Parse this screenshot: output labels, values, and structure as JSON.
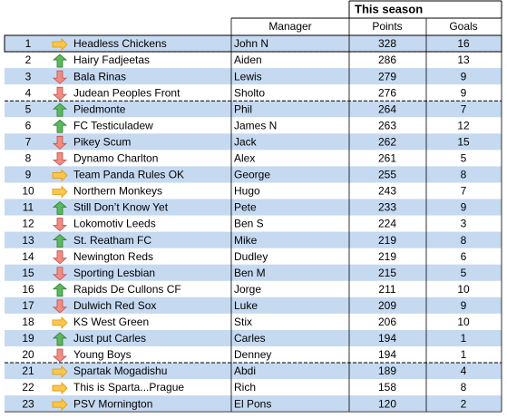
{
  "header": {
    "title": "This season",
    "manager": "Manager",
    "points": "Points",
    "goals": "Goals"
  },
  "table": {
    "rows": [
      {
        "rank": 1,
        "trend": "same",
        "team": "Headless Chickens",
        "manager": "John N",
        "points": 328,
        "goals": 16
      },
      {
        "rank": 2,
        "trend": "up",
        "team": "Hairy Fadjeetas",
        "manager": "Aiden",
        "points": 286,
        "goals": 13
      },
      {
        "rank": 3,
        "trend": "down",
        "team": "Bala Rinas",
        "manager": "Lewis",
        "points": 279,
        "goals": 9
      },
      {
        "rank": 4,
        "trend": "down",
        "team": "Judean Peoples Front",
        "manager": "Sholto",
        "points": 276,
        "goals": 9
      },
      {
        "rank": 5,
        "trend": "up",
        "team": "Piedmonte",
        "manager": "Phil",
        "points": 264,
        "goals": 7
      },
      {
        "rank": 6,
        "trend": "up",
        "team": "FC Testiculadew",
        "manager": "James N",
        "points": 263,
        "goals": 12
      },
      {
        "rank": 7,
        "trend": "down",
        "team": "Pikey Scum",
        "manager": "Jack",
        "points": 262,
        "goals": 15
      },
      {
        "rank": 8,
        "trend": "down",
        "team": "Dynamo Charlton",
        "manager": "Alex",
        "points": 261,
        "goals": 5
      },
      {
        "rank": 9,
        "trend": "same",
        "team": "Team Panda Rules OK",
        "manager": "George",
        "points": 255,
        "goals": 8
      },
      {
        "rank": 10,
        "trend": "same",
        "team": "Northern Monkeys",
        "manager": "Hugo",
        "points": 243,
        "goals": 7
      },
      {
        "rank": 11,
        "trend": "up",
        "team": "Still Don’t Know Yet",
        "manager": "Pete",
        "points": 233,
        "goals": 9
      },
      {
        "rank": 12,
        "trend": "down",
        "team": "Lokomotiv Leeds",
        "manager": "Ben S",
        "points": 224,
        "goals": 3
      },
      {
        "rank": 13,
        "trend": "up",
        "team": "St. Reatham FC",
        "manager": "Mike",
        "points": 219,
        "goals": 8
      },
      {
        "rank": 14,
        "trend": "down",
        "team": "Newington Reds",
        "manager": "Dudley",
        "points": 219,
        "goals": 6
      },
      {
        "rank": 15,
        "trend": "down",
        "team": "Sporting Lesbian",
        "manager": "Ben M",
        "points": 215,
        "goals": 5
      },
      {
        "rank": 16,
        "trend": "up",
        "team": "Rapids De Cullons CF",
        "manager": "Jorge",
        "points": 211,
        "goals": 10
      },
      {
        "rank": 17,
        "trend": "down",
        "team": "Dulwich Red Sox",
        "manager": "Luke",
        "points": 209,
        "goals": 9
      },
      {
        "rank": 18,
        "trend": "same",
        "team": "KS West Green",
        "manager": "Stix",
        "points": 206,
        "goals": 10
      },
      {
        "rank": 19,
        "trend": "up",
        "team": "Just put Carles",
        "manager": "Carles",
        "points": 194,
        "goals": 1
      },
      {
        "rank": 20,
        "trend": "down",
        "team": "Young Boys",
        "manager": "Denney",
        "points": 194,
        "goals": 1
      },
      {
        "rank": 21,
        "trend": "same",
        "team": "Spartak Mogadishu",
        "manager": "Abdi",
        "points": 189,
        "goals": 4
      },
      {
        "rank": 22,
        "trend": "same",
        "team": "This is Sparta...Prague",
        "manager": "Rich",
        "points": 158,
        "goals": 8
      },
      {
        "rank": 23,
        "trend": "same",
        "team": "PSV Mornington",
        "manager": "El Pons",
        "points": 120,
        "goals": 2
      }
    ]
  }
}
